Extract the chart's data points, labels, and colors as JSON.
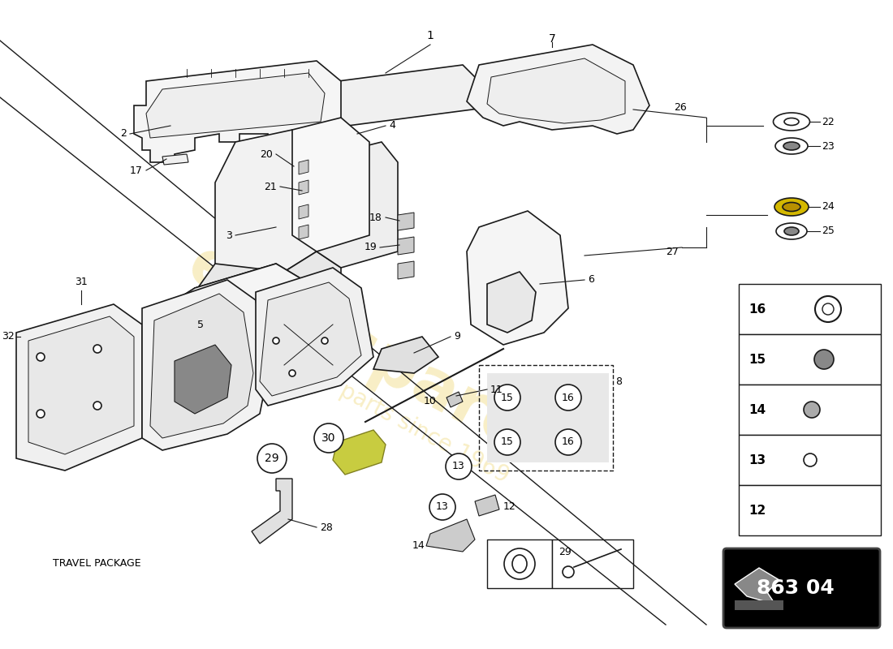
{
  "background_color": "#ffffff",
  "line_color": "#1a1a1a",
  "part_number": "863 04",
  "watermark_color": "#e8c840",
  "travel_package_label": "TRAVEL PACKAGE",
  "part_number_bg": "#000000",
  "part_number_color": "#ffffff"
}
